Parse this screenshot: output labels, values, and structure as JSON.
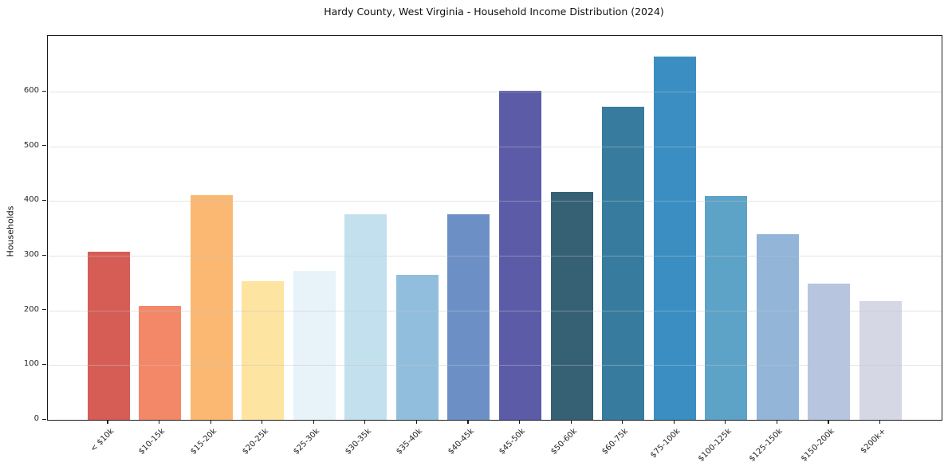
{
  "figure": {
    "title": "Hardy County, West Virginia - Household Income Distribution (2024)",
    "ylabel": "Households"
  },
  "chart_data": {
    "type": "bar",
    "title": "Hardy County, West Virginia - Household Income Distribution (2024)",
    "xlabel": "",
    "ylabel": "Households",
    "categories": [
      "< $10k",
      "$10-15k",
      "$15-20k",
      "$20-25k",
      "$25-30k",
      "$30-35k",
      "$35-40k",
      "$40-45k",
      "$45-50k",
      "$50-60k",
      "$60-75k",
      "$75-100k",
      "$100-125k",
      "$125-150k",
      "$150-200k",
      "$200k+"
    ],
    "values": [
      307,
      209,
      411,
      254,
      272,
      376,
      265,
      376,
      602,
      416,
      573,
      664,
      410,
      340,
      249,
      217
    ],
    "bar_colors": [
      "#d65d56",
      "#f38869",
      "#fab873",
      "#fde4a1",
      "#e7f3f8",
      "#c3e0ee",
      "#92bedd",
      "#6c90c6",
      "#5b5ba8",
      "#366073",
      "#377c9e",
      "#3a8ec2",
      "#5ca3c7",
      "#92b5d8",
      "#b7c6de",
      "#d5d7e4"
    ],
    "yticks": [
      0,
      100,
      200,
      300,
      400,
      500,
      600
    ],
    "ylim": [
      0,
      702
    ],
    "grid": "horizontal-only, light gray, drawn over bars",
    "legend_position": "none",
    "spines": "full box"
  }
}
